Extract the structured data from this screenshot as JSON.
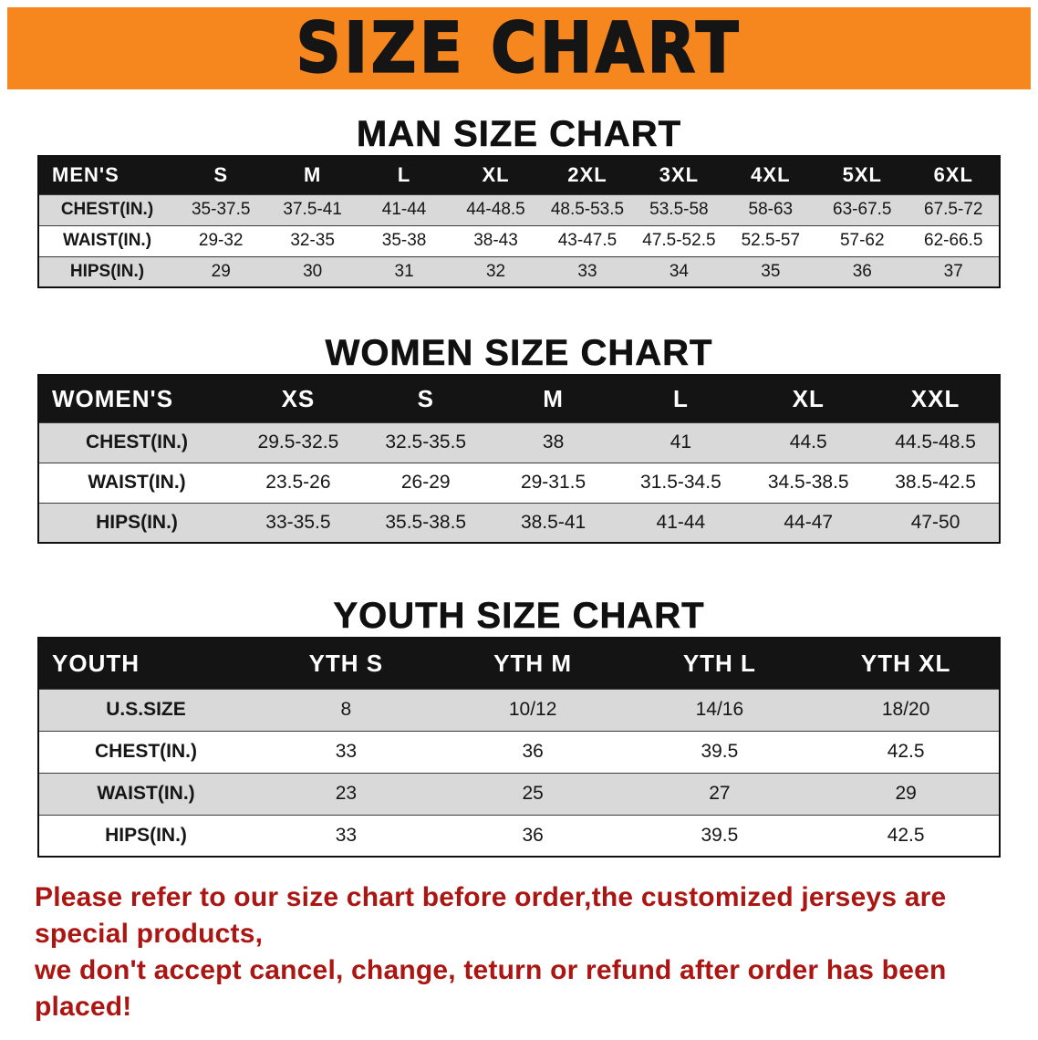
{
  "banner": {
    "title": "SIZE CHART",
    "bg_color": "#F6871F",
    "text_color": "#151515"
  },
  "sections": [
    {
      "heading": "MAN SIZE CHART"
    },
    {
      "heading": "WOMEN SIZE CHART"
    },
    {
      "heading": "YOUTH SIZE CHART"
    }
  ],
  "chart_data": [
    {
      "type": "table",
      "title": "MAN SIZE CHART",
      "header": [
        "MEN'S",
        "S",
        "M",
        "L",
        "XL",
        "2XL",
        "3XL",
        "4XL",
        "5XL",
        "6XL"
      ],
      "rows": [
        [
          "CHEST(IN.)",
          "35-37.5",
          "37.5-41",
          "41-44",
          "44-48.5",
          "48.5-53.5",
          "53.5-58",
          "58-63",
          "63-67.5",
          "67.5-72"
        ],
        [
          "WAIST(IN.)",
          "29-32",
          "32-35",
          "35-38",
          "38-43",
          "43-47.5",
          "47.5-52.5",
          "52.5-57",
          "57-62",
          "62-66.5"
        ],
        [
          "HIPS(IN.)",
          "29",
          "30",
          "31",
          "32",
          "33",
          "34",
          "35",
          "36",
          "37"
        ]
      ]
    },
    {
      "type": "table",
      "title": "WOMEN SIZE CHART",
      "header": [
        "WOMEN'S",
        "XS",
        "S",
        "M",
        "L",
        "XL",
        "XXL"
      ],
      "rows": [
        [
          "CHEST(IN.)",
          "29.5-32.5",
          "32.5-35.5",
          "38",
          "41",
          "44.5",
          "44.5-48.5"
        ],
        [
          "WAIST(IN.)",
          "23.5-26",
          "26-29",
          "29-31.5",
          "31.5-34.5",
          "34.5-38.5",
          "38.5-42.5"
        ],
        [
          "HIPS(IN.)",
          "33-35.5",
          "35.5-38.5",
          "38.5-41",
          "41-44",
          "44-47",
          "47-50"
        ]
      ]
    },
    {
      "type": "table",
      "title": "YOUTH SIZE CHART",
      "header": [
        "YOUTH",
        "YTH S",
        "YTH M",
        "YTH L",
        "YTH XL"
      ],
      "rows": [
        [
          "U.S.SIZE",
          "8",
          "10/12",
          "14/16",
          "18/20"
        ],
        [
          "CHEST(IN.)",
          "33",
          "36",
          "39.5",
          "42.5"
        ],
        [
          "WAIST(IN.)",
          "23",
          "25",
          "27",
          "29"
        ],
        [
          "HIPS(IN.)",
          "33",
          "36",
          "39.5",
          "42.5"
        ]
      ]
    }
  ],
  "footer": {
    "line1": "Please refer to our size chart before order,the customized jerseys are special products,",
    "line2": "we don't accept cancel, change, teturn or refund after order has been placed!",
    "text_color": "#AB1512"
  }
}
